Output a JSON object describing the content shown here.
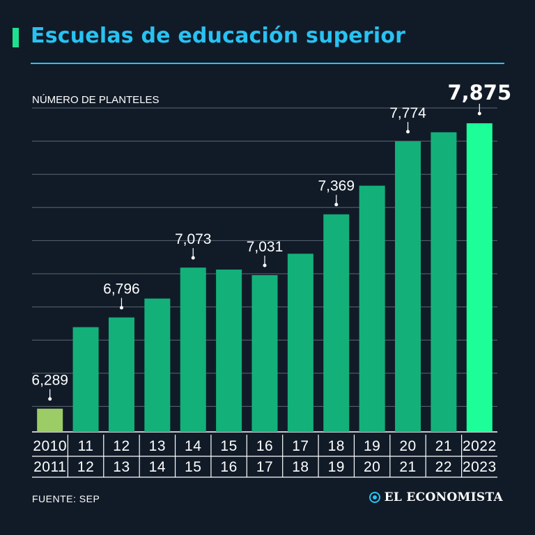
{
  "header": {
    "title": "Escuelas de educación superior"
  },
  "footer": {
    "source": "FUENTE: SEP",
    "brand": "EL ECONOMISTA"
  },
  "colors": {
    "background": "#111b28",
    "accent": "#28c2f2",
    "bar": "#14b07a",
    "bar_first": "#9ccc65",
    "bar_last": "#1dfe98",
    "text": "#ffffff"
  },
  "chart_data": {
    "type": "bar",
    "title": "Escuelas de educación superior",
    "ylabel": "NÚMERO DE PLANTELES",
    "xlabel": "",
    "ylim": [
      6160,
      7960
    ],
    "categories": [
      "2010-2011",
      "2011-2012",
      "2012-2013",
      "2013-2014",
      "2014-2015",
      "2015-2016",
      "2016-2017",
      "2017-2018",
      "2018-2019",
      "2019-2020",
      "2020-2021",
      "2021-2022",
      "2022-2023"
    ],
    "tick_top": [
      "2010",
      "11",
      "12",
      "13",
      "14",
      "15",
      "16",
      "17",
      "18",
      "19",
      "20",
      "21",
      "2022"
    ],
    "tick_bottom": [
      "2011",
      "12",
      "13",
      "14",
      "15",
      "16",
      "17",
      "18",
      "19",
      "20",
      "21",
      "22",
      "2023"
    ],
    "values": [
      6289,
      6742,
      6796,
      6901,
      7073,
      7062,
      7031,
      7150,
      7369,
      7528,
      7774,
      7825,
      7875
    ],
    "labels": [
      "6,289",
      "",
      "6,796",
      "",
      "7,073",
      "",
      "7,031",
      "",
      "7,369",
      "",
      "7,774",
      "",
      "7,875"
    ],
    "grid": true
  }
}
